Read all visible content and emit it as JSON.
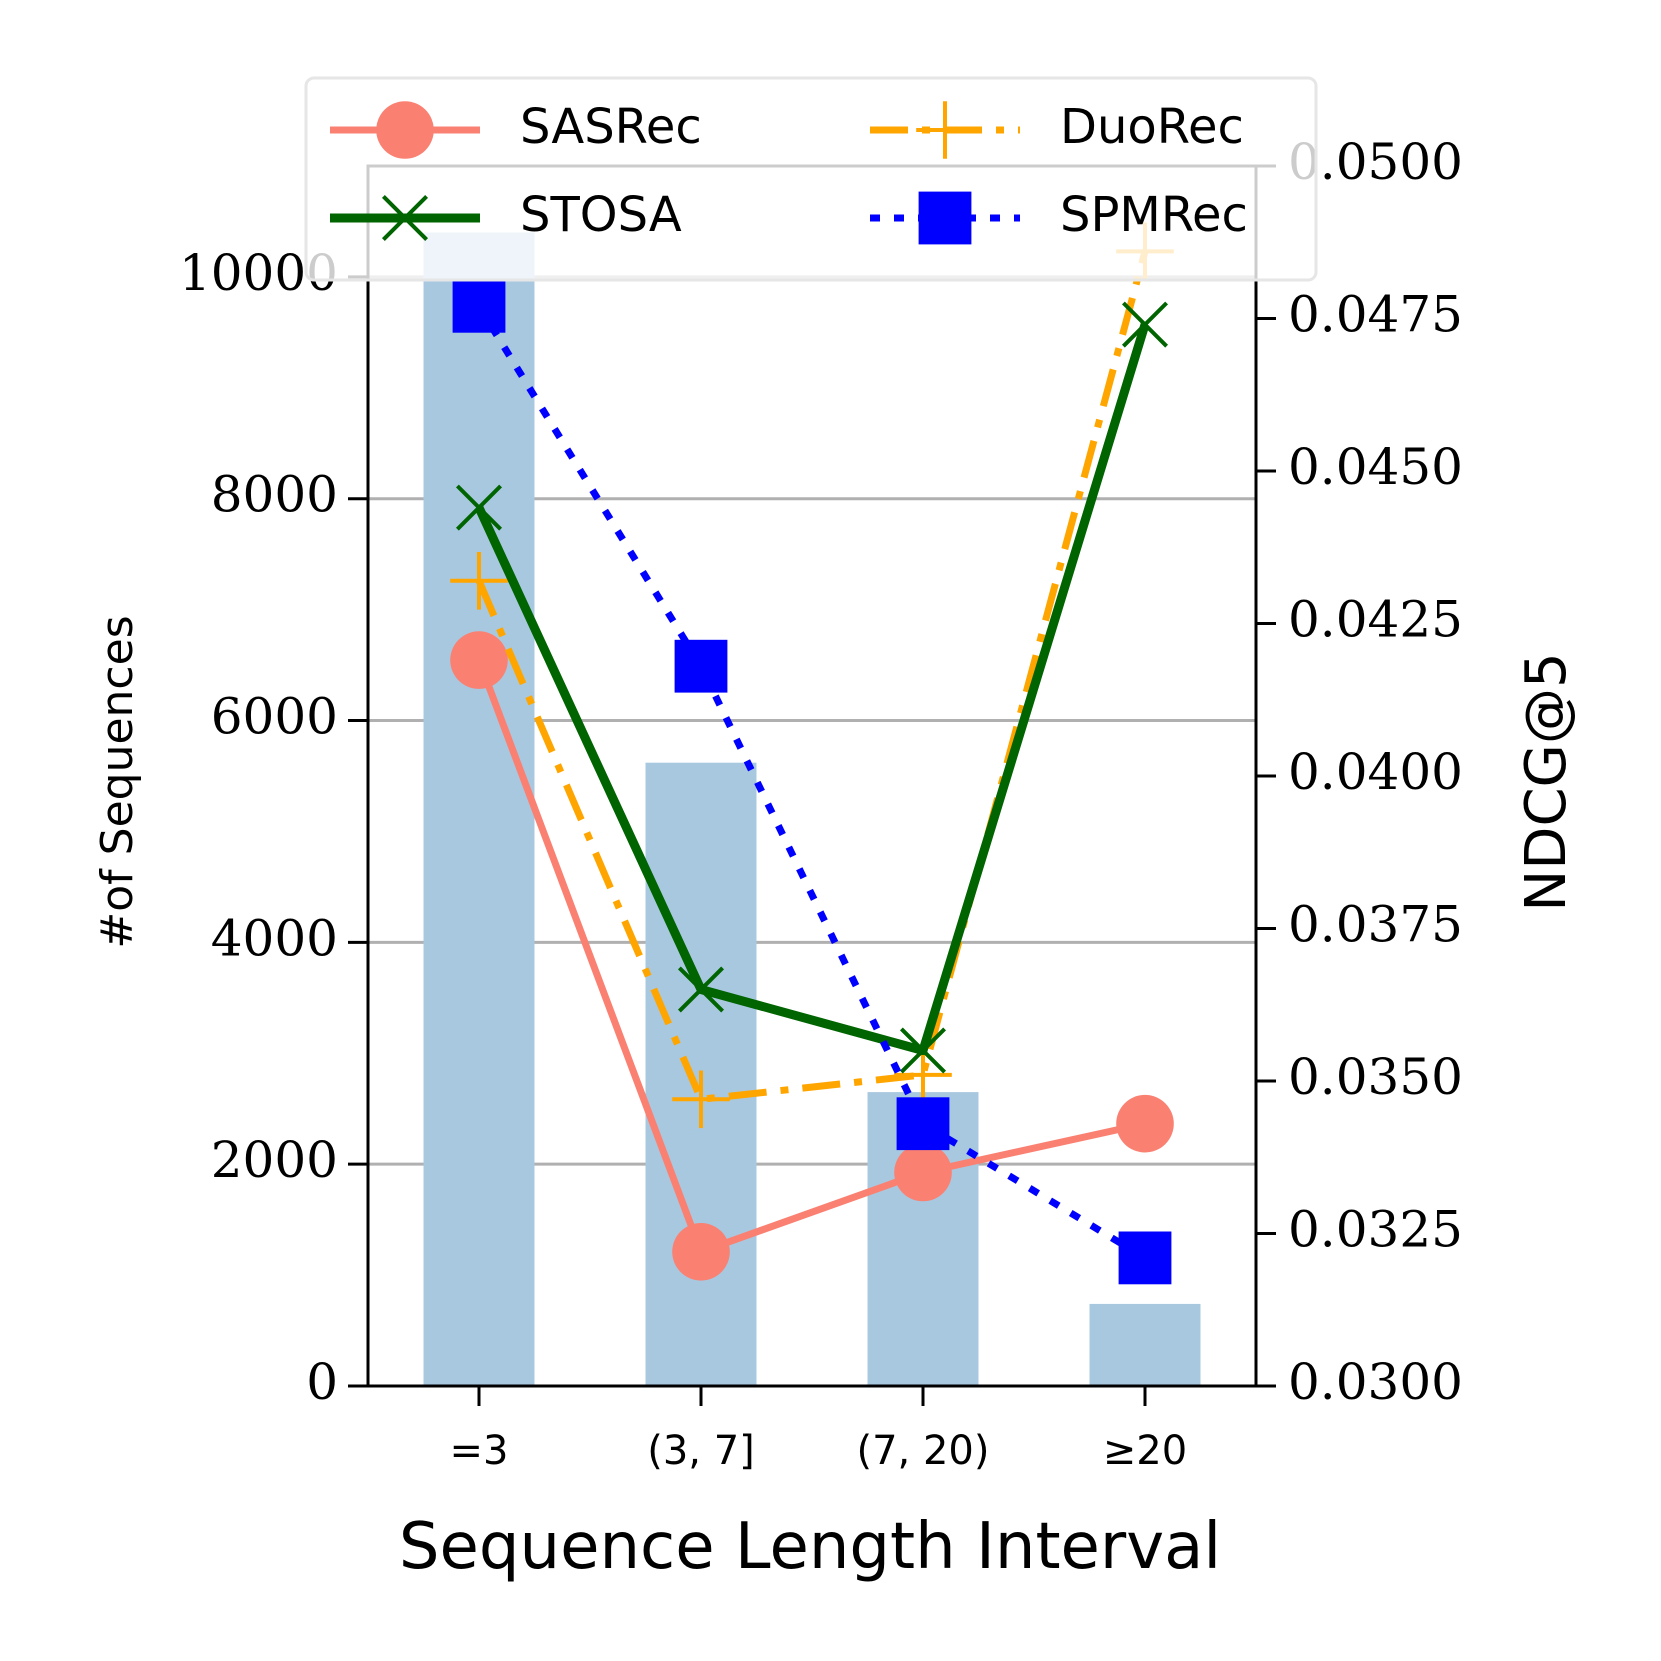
{
  "chart_data": {
    "type": "bar+line",
    "xlabel": "Sequence Length Interval",
    "ylabel_left": "#of Sequences",
    "ylabel_right": "NDCG@5",
    "categories": [
      "=3",
      "(3, 7]",
      "(7, 20)",
      "≥20"
    ],
    "bars": {
      "name": "#of Sequences",
      "color": "#a8c8e0",
      "values": [
        10400,
        5620,
        2650,
        740
      ]
    },
    "ylim_left": [
      0,
      11000
    ],
    "yticks_left": [
      0,
      2000,
      4000,
      6000,
      8000,
      10000
    ],
    "ylim_right": [
      0.03,
      0.05
    ],
    "yticks_right": [
      "0.0300",
      "0.0325",
      "0.0350",
      "0.0375",
      "0.0400",
      "0.0425",
      "0.0450",
      "0.0475",
      "0.0500"
    ],
    "series": [
      {
        "name": "SASRec",
        "color": "#fa8072",
        "marker": "circle",
        "style": "solid",
        "values": [
          0.0419,
          0.0322,
          0.0335,
          0.0343
        ]
      },
      {
        "name": "DuoRec",
        "color": "#ffa500",
        "marker": "plus",
        "style": "dashdot",
        "values": [
          0.0432,
          0.0347,
          0.0351,
          0.0486
        ]
      },
      {
        "name": "STOSA",
        "color": "#006400",
        "marker": "x",
        "style": "solid",
        "values": [
          0.0444,
          0.0365,
          0.0355,
          0.0474
        ]
      },
      {
        "name": "SPMRec",
        "color": "#0000ff",
        "marker": "square",
        "style": "dotted",
        "values": [
          0.0477,
          0.0418,
          0.0343,
          0.0321
        ]
      }
    ],
    "legend": {
      "position": "top",
      "columns": 2
    },
    "grid": "horizontal"
  }
}
